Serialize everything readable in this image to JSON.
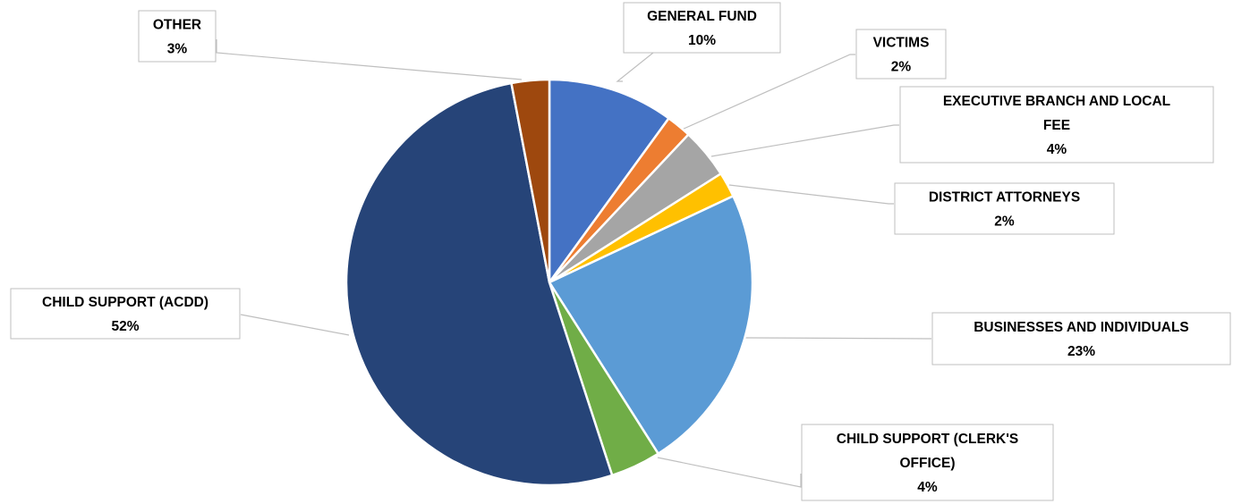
{
  "chart_data": {
    "type": "pie",
    "title": "",
    "start_angle_deg": 0,
    "direction": "clockwise",
    "legend": "none",
    "slices": [
      {
        "label": [
          "GENERAL FUND"
        ],
        "value": 10,
        "value_label": "10%",
        "color": "#4472C4"
      },
      {
        "label": [
          "VICTIMS"
        ],
        "value": 2,
        "value_label": "2%",
        "color": "#ED7D31"
      },
      {
        "label": [
          "EXECUTIVE BRANCH AND LOCAL",
          "FEE"
        ],
        "value": 4,
        "value_label": "4%",
        "color": "#A5A5A5"
      },
      {
        "label": [
          "DISTRICT ATTORNEYS"
        ],
        "value": 2,
        "value_label": "2%",
        "color": "#FFC000"
      },
      {
        "label": [
          "BUSINESSES AND INDIVIDUALS"
        ],
        "value": 23,
        "value_label": "23%",
        "color": "#5B9BD5"
      },
      {
        "label": [
          "CHILD SUPPORT (CLERK'S",
          "OFFICE)"
        ],
        "value": 4,
        "value_label": "4%",
        "color": "#70AD47"
      },
      {
        "label": [
          "CHILD SUPPORT (ACDD)"
        ],
        "value": 52,
        "value_label": "52%",
        "color": "#264478"
      },
      {
        "label": [
          "OTHER"
        ],
        "value": 3,
        "value_label": "3%",
        "color": "#9E480E"
      }
    ]
  }
}
